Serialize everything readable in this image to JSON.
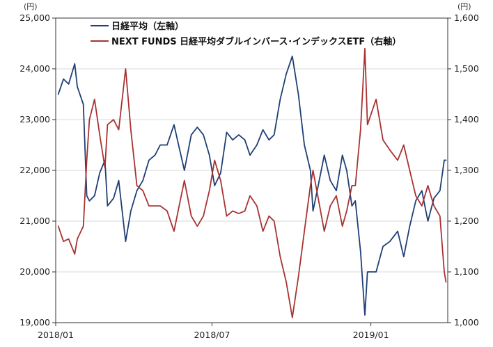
{
  "chart_data": {
    "type": "line",
    "left_unit": "(円)",
    "right_unit": "(円)",
    "left_axis": {
      "min": 19000,
      "max": 25000,
      "ticks": [
        19000,
        20000,
        21000,
        22000,
        23000,
        24000,
        25000
      ],
      "tick_labels": [
        "19,000",
        "20,000",
        "21,000",
        "22,000",
        "23,000",
        "24,000",
        "25,000"
      ]
    },
    "right_axis": {
      "min": 1000,
      "max": 1600,
      "ticks": [
        1000,
        1100,
        1200,
        1300,
        1400,
        1500,
        1600
      ],
      "tick_labels": [
        "1,000",
        "1,100",
        "1,200",
        "1,300",
        "1,400",
        "1,500",
        "1,600"
      ]
    },
    "x_axis": {
      "start": "2018-01-01",
      "end": "2019-03-31",
      "ticks": [
        "2018-01-01",
        "2018-07-01",
        "2019-01-01"
      ],
      "tick_labels": [
        "2018/01",
        "2018/07",
        "2019/01"
      ]
    },
    "grid": true,
    "legend_position": "top",
    "series": [
      {
        "name": "日経平均（左軸）",
        "axis": "left",
        "color": "#1f3f75",
        "points": [
          [
            "2018-01-04",
            23500
          ],
          [
            "2018-01-10",
            23800
          ],
          [
            "2018-01-16",
            23700
          ],
          [
            "2018-01-23",
            24100
          ],
          [
            "2018-01-26",
            23650
          ],
          [
            "2018-02-02",
            23300
          ],
          [
            "2018-02-06",
            21500
          ],
          [
            "2018-02-09",
            21400
          ],
          [
            "2018-02-15",
            21500
          ],
          [
            "2018-02-21",
            21950
          ],
          [
            "2018-02-27",
            22200
          ],
          [
            "2018-03-02",
            21300
          ],
          [
            "2018-03-09",
            21450
          ],
          [
            "2018-03-15",
            21800
          ],
          [
            "2018-03-23",
            20600
          ],
          [
            "2018-03-29",
            21200
          ],
          [
            "2018-04-05",
            21600
          ],
          [
            "2018-04-12",
            21800
          ],
          [
            "2018-04-19",
            22200
          ],
          [
            "2018-04-26",
            22300
          ],
          [
            "2018-05-02",
            22500
          ],
          [
            "2018-05-10",
            22500
          ],
          [
            "2018-05-18",
            22900
          ],
          [
            "2018-05-24",
            22450
          ],
          [
            "2018-05-30",
            22000
          ],
          [
            "2018-06-07",
            22700
          ],
          [
            "2018-06-14",
            22850
          ],
          [
            "2018-06-21",
            22700
          ],
          [
            "2018-06-28",
            22300
          ],
          [
            "2018-07-04",
            21700
          ],
          [
            "2018-07-11",
            21950
          ],
          [
            "2018-07-18",
            22750
          ],
          [
            "2018-07-25",
            22600
          ],
          [
            "2018-08-01",
            22700
          ],
          [
            "2018-08-08",
            22600
          ],
          [
            "2018-08-14",
            22300
          ],
          [
            "2018-08-22",
            22500
          ],
          [
            "2018-08-29",
            22800
          ],
          [
            "2018-09-05",
            22600
          ],
          [
            "2018-09-11",
            22700
          ],
          [
            "2018-09-18",
            23400
          ],
          [
            "2018-09-25",
            23900
          ],
          [
            "2018-10-02",
            24250
          ],
          [
            "2018-10-09",
            23500
          ],
          [
            "2018-10-16",
            22500
          ],
          [
            "2018-10-23",
            22000
          ],
          [
            "2018-10-26",
            21200
          ],
          [
            "2018-11-01",
            21700
          ],
          [
            "2018-11-08",
            22300
          ],
          [
            "2018-11-15",
            21800
          ],
          [
            "2018-11-22",
            21600
          ],
          [
            "2018-11-29",
            22300
          ],
          [
            "2018-12-04",
            22000
          ],
          [
            "2018-12-10",
            21300
          ],
          [
            "2018-12-14",
            21400
          ],
          [
            "2018-12-20",
            20400
          ],
          [
            "2018-12-25",
            19150
          ],
          [
            "2018-12-28",
            20000
          ],
          [
            "2019-01-07",
            20000
          ],
          [
            "2019-01-15",
            20500
          ],
          [
            "2019-01-23",
            20600
          ],
          [
            "2019-02-01",
            20800
          ],
          [
            "2019-02-08",
            20300
          ],
          [
            "2019-02-15",
            20900
          ],
          [
            "2019-02-22",
            21400
          ],
          [
            "2019-03-01",
            21600
          ],
          [
            "2019-03-08",
            21000
          ],
          [
            "2019-03-15",
            21450
          ],
          [
            "2019-03-22",
            21600
          ],
          [
            "2019-03-27",
            22200
          ],
          [
            "2019-03-29",
            22200
          ]
        ]
      },
      {
        "name": "NEXT FUNDS 日経平均ダブルインバース･インデックスETF（右軸）",
        "axis": "right",
        "color": "#a83232",
        "points": [
          [
            "2018-01-04",
            1190
          ],
          [
            "2018-01-10",
            1160
          ],
          [
            "2018-01-16",
            1165
          ],
          [
            "2018-01-23",
            1135
          ],
          [
            "2018-01-26",
            1165
          ],
          [
            "2018-02-02",
            1190
          ],
          [
            "2018-02-06",
            1320
          ],
          [
            "2018-02-09",
            1400
          ],
          [
            "2018-02-15",
            1440
          ],
          [
            "2018-02-21",
            1370
          ],
          [
            "2018-02-27",
            1305
          ],
          [
            "2018-03-02",
            1390
          ],
          [
            "2018-03-09",
            1400
          ],
          [
            "2018-03-15",
            1380
          ],
          [
            "2018-03-23",
            1500
          ],
          [
            "2018-03-29",
            1380
          ],
          [
            "2018-04-05",
            1270
          ],
          [
            "2018-04-12",
            1260
          ],
          [
            "2018-04-19",
            1230
          ],
          [
            "2018-04-26",
            1230
          ],
          [
            "2018-05-02",
            1230
          ],
          [
            "2018-05-10",
            1220
          ],
          [
            "2018-05-18",
            1180
          ],
          [
            "2018-05-24",
            1230
          ],
          [
            "2018-05-30",
            1280
          ],
          [
            "2018-06-07",
            1210
          ],
          [
            "2018-06-14",
            1190
          ],
          [
            "2018-06-21",
            1210
          ],
          [
            "2018-06-28",
            1260
          ],
          [
            "2018-07-04",
            1320
          ],
          [
            "2018-07-11",
            1280
          ],
          [
            "2018-07-18",
            1210
          ],
          [
            "2018-07-25",
            1220
          ],
          [
            "2018-08-01",
            1215
          ],
          [
            "2018-08-08",
            1220
          ],
          [
            "2018-08-14",
            1250
          ],
          [
            "2018-08-22",
            1230
          ],
          [
            "2018-08-29",
            1180
          ],
          [
            "2018-09-05",
            1210
          ],
          [
            "2018-09-11",
            1200
          ],
          [
            "2018-09-18",
            1130
          ],
          [
            "2018-09-25",
            1080
          ],
          [
            "2018-10-02",
            1010
          ],
          [
            "2018-10-09",
            1090
          ],
          [
            "2018-10-16",
            1180
          ],
          [
            "2018-10-23",
            1270
          ],
          [
            "2018-10-26",
            1300
          ],
          [
            "2018-11-01",
            1245
          ],
          [
            "2018-11-08",
            1180
          ],
          [
            "2018-11-15",
            1230
          ],
          [
            "2018-11-22",
            1250
          ],
          [
            "2018-11-29",
            1190
          ],
          [
            "2018-12-04",
            1220
          ],
          [
            "2018-12-10",
            1270
          ],
          [
            "2018-12-14",
            1270
          ],
          [
            "2018-12-20",
            1380
          ],
          [
            "2018-12-25",
            1540
          ],
          [
            "2018-12-28",
            1390
          ],
          [
            "2019-01-07",
            1440
          ],
          [
            "2019-01-15",
            1360
          ],
          [
            "2019-01-23",
            1340
          ],
          [
            "2019-02-01",
            1320
          ],
          [
            "2019-02-08",
            1350
          ],
          [
            "2019-02-15",
            1300
          ],
          [
            "2019-02-22",
            1250
          ],
          [
            "2019-03-01",
            1230
          ],
          [
            "2019-03-08",
            1270
          ],
          [
            "2019-03-15",
            1230
          ],
          [
            "2019-03-22",
            1210
          ],
          [
            "2019-03-27",
            1100
          ],
          [
            "2019-03-29",
            1080
          ]
        ]
      }
    ]
  }
}
